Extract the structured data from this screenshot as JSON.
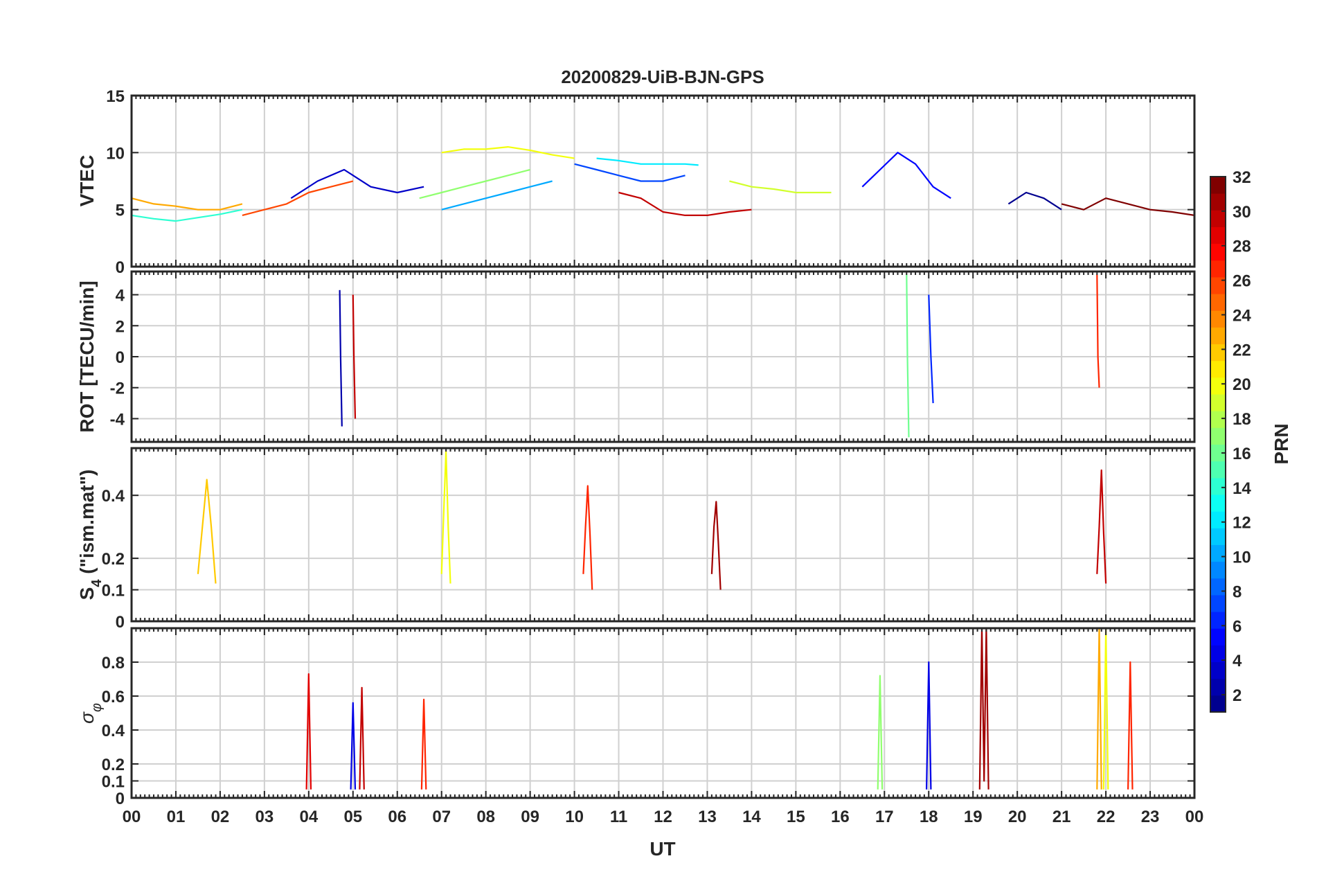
{
  "figure": {
    "title": "20200829-UiB-BJN-GPS",
    "xlabel": "UT",
    "x_tick_labels": [
      "00",
      "01",
      "02",
      "03",
      "04",
      "05",
      "06",
      "07",
      "08",
      "09",
      "10",
      "11",
      "12",
      "13",
      "14",
      "15",
      "16",
      "17",
      "18",
      "19",
      "20",
      "21",
      "22",
      "23",
      "00"
    ]
  },
  "colorbar": {
    "label": "PRN",
    "min": 1,
    "max": 32,
    "ticks": [
      2,
      4,
      6,
      8,
      10,
      12,
      14,
      16,
      18,
      20,
      22,
      24,
      26,
      28,
      30,
      32
    ],
    "colormap": "jet",
    "colors": [
      "#00008f",
      "#0000ff",
      "#0080ff",
      "#00ffff",
      "#80ff80",
      "#ffff00",
      "#ff8000",
      "#ff0000",
      "#800000"
    ]
  },
  "chart_data": [
    {
      "type": "line",
      "panel": "vtec",
      "ylabel": "VTEC",
      "xlim": [
        0,
        24
      ],
      "ylim": [
        0,
        15
      ],
      "y_ticks": [
        0,
        5,
        10,
        15
      ],
      "grid": true,
      "series": [
        {
          "prn": 1,
          "x": [
            19.8,
            20.2,
            20.6,
            21.0
          ],
          "y": [
            5.5,
            6.5,
            6.0,
            5.0
          ]
        },
        {
          "prn": 3,
          "x": [
            3.6,
            4.2,
            4.8,
            5.4,
            6.0,
            6.6
          ],
          "y": [
            6.0,
            7.5,
            8.5,
            7.0,
            6.5,
            7.0
          ]
        },
        {
          "prn": 5,
          "x": [
            16.5,
            16.9,
            17.3,
            17.7,
            18.1,
            18.5
          ],
          "y": [
            7.0,
            8.5,
            10.0,
            9.0,
            7.0,
            6.0
          ]
        },
        {
          "prn": 7,
          "x": [
            10.0,
            10.5,
            11.0,
            11.5,
            12.0,
            12.5
          ],
          "y": [
            9.0,
            8.5,
            8.0,
            7.5,
            7.5,
            8.0
          ]
        },
        {
          "prn": 10,
          "x": [
            7.0,
            7.5,
            8.0,
            8.5,
            9.0,
            9.5
          ],
          "y": [
            5.0,
            5.5,
            6.0,
            6.5,
            7.0,
            7.5
          ]
        },
        {
          "prn": 12,
          "x": [
            10.5,
            11.0,
            11.5,
            12.0,
            12.5,
            12.8
          ],
          "y": [
            9.5,
            9.3,
            9.0,
            9.0,
            9.0,
            8.9
          ]
        },
        {
          "prn": 14,
          "x": [
            0.0,
            0.5,
            1.0,
            1.5,
            2.0,
            2.5
          ],
          "y": [
            4.5,
            4.2,
            4.0,
            4.3,
            4.6,
            5.0
          ]
        },
        {
          "prn": 17,
          "x": [
            6.5,
            7.0,
            7.5,
            8.0,
            8.5,
            9.0
          ],
          "y": [
            6.0,
            6.5,
            7.0,
            7.5,
            8.0,
            8.5
          ]
        },
        {
          "prn": 19,
          "x": [
            13.5,
            14.0,
            14.5,
            15.0,
            15.5,
            15.8
          ],
          "y": [
            7.5,
            7.0,
            6.8,
            6.5,
            6.5,
            6.5
          ]
        },
        {
          "prn": 20,
          "x": [
            7.0,
            7.5,
            8.0,
            8.5,
            9.0,
            9.5,
            10.0
          ],
          "y": [
            10.0,
            10.3,
            10.3,
            10.5,
            10.2,
            9.8,
            9.5
          ]
        },
        {
          "prn": 23,
          "x": [
            0.0,
            0.5,
            1.0,
            1.5,
            2.0,
            2.5
          ],
          "y": [
            6.0,
            5.5,
            5.3,
            5.0,
            5.0,
            5.5
          ]
        },
        {
          "prn": 26,
          "x": [
            2.5,
            3.0,
            3.5,
            4.0,
            4.5,
            5.0
          ],
          "y": [
            4.5,
            5.0,
            5.5,
            6.5,
            7.0,
            7.5
          ]
        },
        {
          "prn": 30,
          "x": [
            11.0,
            11.5,
            12.0,
            12.5,
            13.0,
            13.5,
            14.0
          ],
          "y": [
            6.5,
            6.0,
            4.8,
            4.5,
            4.5,
            4.8,
            5.0
          ]
        },
        {
          "prn": 32,
          "x": [
            21.0,
            21.5,
            22.0,
            22.5,
            23.0,
            23.5,
            24.0
          ],
          "y": [
            5.5,
            5.0,
            6.0,
            5.5,
            5.0,
            4.8,
            4.5
          ]
        }
      ]
    },
    {
      "type": "line",
      "panel": "rot",
      "ylabel": "ROT [TECU/min]",
      "xlim": [
        0,
        24
      ],
      "ylim": [
        -5.5,
        5.5
      ],
      "y_ticks": [
        -4,
        -2,
        0,
        2,
        4
      ],
      "grid": true,
      "series": [
        {
          "prn": 2,
          "x": [
            4.7,
            4.72,
            4.75
          ],
          "y": [
            4.3,
            0.0,
            -4.5
          ]
        },
        {
          "prn": 6,
          "x": [
            18.0,
            18.05,
            18.1
          ],
          "y": [
            4.0,
            0.0,
            -3.0
          ]
        },
        {
          "prn": 16,
          "x": [
            17.5,
            17.52,
            17.55
          ],
          "y": [
            5.3,
            0.0,
            -5.2
          ]
        },
        {
          "prn": 27,
          "x": [
            21.8,
            21.82,
            21.85
          ],
          "y": [
            5.3,
            0.0,
            -2.0
          ]
        },
        {
          "prn": 30,
          "x": [
            5.0,
            5.02,
            5.05
          ],
          "y": [
            4.0,
            0.0,
            -4.0
          ]
        }
      ]
    },
    {
      "type": "line",
      "panel": "s4",
      "ylabel": "S4 (\"ism.mat\")",
      "ylabel_main": "S",
      "ylabel_sub": "4",
      "ylabel_rest": " (\"ism.mat\")",
      "xlim": [
        0,
        24
      ],
      "ylim": [
        0,
        0.55
      ],
      "y_ticks": [
        0,
        0.1,
        0.2,
        0.4
      ],
      "grid": true,
      "series": [
        {
          "prn": 22,
          "x": [
            1.5,
            1.6,
            1.7,
            1.8,
            1.9
          ],
          "y": [
            0.15,
            0.3,
            0.45,
            0.3,
            0.12
          ]
        },
        {
          "prn": 20,
          "x": [
            7.0,
            7.05,
            7.1,
            7.15,
            7.2
          ],
          "y": [
            0.15,
            0.35,
            0.54,
            0.3,
            0.12
          ]
        },
        {
          "prn": 30,
          "x": [
            21.8,
            21.85,
            21.9,
            21.95,
            22.0
          ],
          "y": [
            0.15,
            0.3,
            0.48,
            0.28,
            0.12
          ]
        },
        {
          "prn": 27,
          "x": [
            10.2,
            10.25,
            10.3,
            10.35,
            10.4
          ],
          "y": [
            0.15,
            0.3,
            0.43,
            0.28,
            0.1
          ]
        },
        {
          "prn": 31,
          "x": [
            13.1,
            13.15,
            13.2,
            13.25,
            13.3
          ],
          "y": [
            0.15,
            0.3,
            0.38,
            0.25,
            0.1
          ]
        }
      ]
    },
    {
      "type": "line",
      "panel": "sigma_phi",
      "ylabel": "σ φ",
      "ylabel_main": "σ",
      "ylabel_sub": "φ",
      "xlim": [
        0,
        24
      ],
      "ylim": [
        0,
        1.0
      ],
      "y_ticks": [
        0,
        0.1,
        0.2,
        0.4,
        0.6,
        0.8
      ],
      "grid": true,
      "series": [
        {
          "prn": 29,
          "x": [
            3.95,
            4.0,
            4.05
          ],
          "y": [
            0.05,
            0.73,
            0.05
          ]
        },
        {
          "prn": 4,
          "x": [
            4.95,
            5.0,
            5.05
          ],
          "y": [
            0.05,
            0.56,
            0.05
          ]
        },
        {
          "prn": 30,
          "x": [
            5.15,
            5.2,
            5.25
          ],
          "y": [
            0.05,
            0.65,
            0.05
          ]
        },
        {
          "prn": 27,
          "x": [
            6.55,
            6.6,
            6.65
          ],
          "y": [
            0.05,
            0.58,
            0.05
          ]
        },
        {
          "prn": 17,
          "x": [
            16.85,
            16.9,
            16.95
          ],
          "y": [
            0.05,
            0.72,
            0.05
          ]
        },
        {
          "prn": 4,
          "x": [
            17.95,
            18.0,
            18.05
          ],
          "y": [
            0.05,
            0.8,
            0.05
          ]
        },
        {
          "prn": 31,
          "x": [
            19.15,
            19.2,
            19.25,
            19.3,
            19.35
          ],
          "y": [
            0.05,
            1.0,
            0.1,
            1.0,
            0.05
          ]
        },
        {
          "prn": 23,
          "x": [
            21.8,
            21.85,
            21.9
          ],
          "y": [
            0.05,
            1.0,
            0.05
          ]
        },
        {
          "prn": 20,
          "x": [
            21.95,
            22.0,
            22.05
          ],
          "y": [
            0.05,
            1.0,
            0.05
          ]
        },
        {
          "prn": 27,
          "x": [
            22.5,
            22.55,
            22.6
          ],
          "y": [
            0.05,
            0.8,
            0.05
          ]
        }
      ]
    }
  ]
}
